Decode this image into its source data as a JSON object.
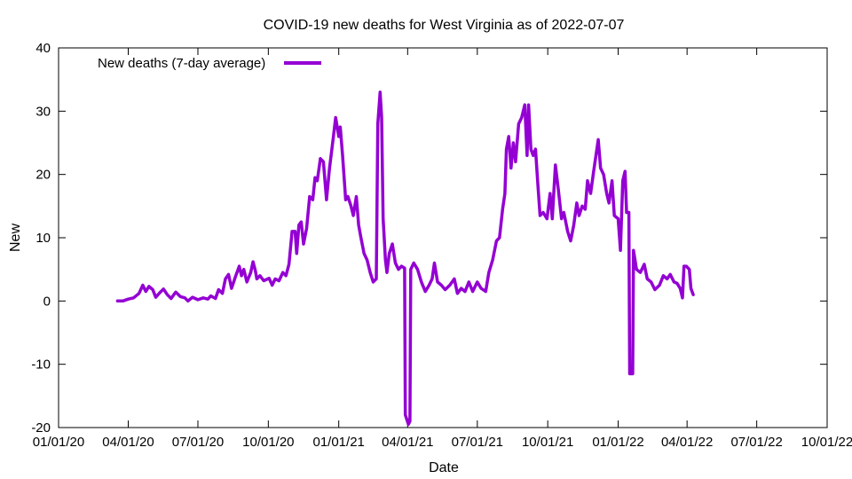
{
  "chart_data": {
    "type": "line",
    "title": "COVID-19 new deaths for West Virginia as of 2022-07-07",
    "xlabel": "Date",
    "ylabel": "New",
    "xlim": [
      "2020-01-01",
      "2022-10-01"
    ],
    "ylim": [
      -20,
      40
    ],
    "x_ticks": [
      "01/01/20",
      "04/01/20",
      "07/01/20",
      "10/01/20",
      "01/01/21",
      "04/01/21",
      "07/01/21",
      "10/01/21",
      "01/01/22",
      "04/01/22",
      "07/01/22",
      "10/01/22"
    ],
    "y_ticks": [
      "-20",
      "-10",
      "0",
      "10",
      "20",
      "30",
      "40"
    ],
    "grid": false,
    "legend_position": "top-left",
    "series_color": "#9400d3",
    "series": [
      {
        "name": "New deaths (7-day average)",
        "points": [
          [
            "2020-03-18",
            0
          ],
          [
            "2020-03-25",
            0
          ],
          [
            "2020-04-01",
            0.3
          ],
          [
            "2020-04-08",
            0.5
          ],
          [
            "2020-04-15",
            1.2
          ],
          [
            "2020-04-20",
            2.5
          ],
          [
            "2020-04-24",
            1.5
          ],
          [
            "2020-04-28",
            2.3
          ],
          [
            "2020-05-03",
            1.8
          ],
          [
            "2020-05-07",
            0.6
          ],
          [
            "2020-05-12",
            1.3
          ],
          [
            "2020-05-17",
            1.9
          ],
          [
            "2020-05-22",
            1.0
          ],
          [
            "2020-05-27",
            0.4
          ],
          [
            "2020-06-02",
            1.4
          ],
          [
            "2020-06-08",
            0.7
          ],
          [
            "2020-06-14",
            0.5
          ],
          [
            "2020-06-18",
            0.0
          ],
          [
            "2020-06-24",
            0.6
          ],
          [
            "2020-07-01",
            0.2
          ],
          [
            "2020-07-08",
            0.5
          ],
          [
            "2020-07-14",
            0.3
          ],
          [
            "2020-07-18",
            0.8
          ],
          [
            "2020-07-24",
            0.4
          ],
          [
            "2020-07-28",
            1.8
          ],
          [
            "2020-08-02",
            1.2
          ],
          [
            "2020-08-06",
            3.5
          ],
          [
            "2020-08-10",
            4.2
          ],
          [
            "2020-08-14",
            2.0
          ],
          [
            "2020-08-19",
            3.8
          ],
          [
            "2020-08-24",
            5.5
          ],
          [
            "2020-08-27",
            4.0
          ],
          [
            "2020-08-30",
            5.0
          ],
          [
            "2020-09-03",
            3.0
          ],
          [
            "2020-09-08",
            4.5
          ],
          [
            "2020-09-11",
            6.2
          ],
          [
            "2020-09-14",
            4.8
          ],
          [
            "2020-09-16",
            3.5
          ],
          [
            "2020-09-20",
            4.0
          ],
          [
            "2020-09-25",
            3.2
          ],
          [
            "2020-10-02",
            3.6
          ],
          [
            "2020-10-06",
            2.5
          ],
          [
            "2020-10-10",
            3.5
          ],
          [
            "2020-10-15",
            3.2
          ],
          [
            "2020-10-20",
            4.5
          ],
          [
            "2020-10-24",
            4.0
          ],
          [
            "2020-10-28",
            5.8
          ],
          [
            "2020-11-01",
            11.0
          ],
          [
            "2020-11-05",
            11.0
          ],
          [
            "2020-11-07",
            7.5
          ],
          [
            "2020-11-10",
            12.0
          ],
          [
            "2020-11-13",
            12.5
          ],
          [
            "2020-11-16",
            9.0
          ],
          [
            "2020-11-20",
            11.5
          ],
          [
            "2020-11-24",
            16.5
          ],
          [
            "2020-11-28",
            16.0
          ],
          [
            "2020-12-01",
            19.5
          ],
          [
            "2020-12-04",
            19.0
          ],
          [
            "2020-12-08",
            22.5
          ],
          [
            "2020-12-12",
            22.0
          ],
          [
            "2020-12-16",
            16.0
          ],
          [
            "2020-12-20",
            21.0
          ],
          [
            "2020-12-25",
            26.0
          ],
          [
            "2020-12-28",
            29.0
          ],
          [
            "2021-01-01",
            26.0
          ],
          [
            "2021-01-03",
            27.5
          ],
          [
            "2021-01-06",
            23.0
          ],
          [
            "2021-01-10",
            16.0
          ],
          [
            "2021-01-13",
            16.5
          ],
          [
            "2021-01-17",
            15.0
          ],
          [
            "2021-01-20",
            13.5
          ],
          [
            "2021-01-24",
            16.5
          ],
          [
            "2021-01-27",
            12.0
          ],
          [
            "2021-01-30",
            10.0
          ],
          [
            "2021-02-03",
            7.5
          ],
          [
            "2021-02-07",
            6.5
          ],
          [
            "2021-02-11",
            4.5
          ],
          [
            "2021-02-15",
            3.0
          ],
          [
            "2021-02-19",
            3.5
          ],
          [
            "2021-02-21",
            28.0
          ],
          [
            "2021-02-24",
            33.0
          ],
          [
            "2021-02-26",
            29.0
          ],
          [
            "2021-02-28",
            13.0
          ],
          [
            "2021-03-03",
            6.5
          ],
          [
            "2021-03-05",
            4.5
          ],
          [
            "2021-03-08",
            7.5
          ],
          [
            "2021-03-12",
            9.0
          ],
          [
            "2021-03-16",
            6.0
          ],
          [
            "2021-03-20",
            5.0
          ],
          [
            "2021-03-24",
            5.5
          ],
          [
            "2021-03-28",
            5.2
          ],
          [
            "2021-03-29",
            -18.0
          ],
          [
            "2021-04-02",
            -19.5
          ],
          [
            "2021-04-04",
            -19.0
          ],
          [
            "2021-04-05",
            5.0
          ],
          [
            "2021-04-09",
            6.0
          ],
          [
            "2021-04-14",
            5.0
          ],
          [
            "2021-04-19",
            3.0
          ],
          [
            "2021-04-24",
            1.5
          ],
          [
            "2021-04-29",
            2.5
          ],
          [
            "2021-05-03",
            3.5
          ],
          [
            "2021-05-06",
            6.0
          ],
          [
            "2021-05-10",
            3.0
          ],
          [
            "2021-05-15",
            2.5
          ],
          [
            "2021-05-20",
            1.8
          ],
          [
            "2021-05-26",
            2.5
          ],
          [
            "2021-06-01",
            3.5
          ],
          [
            "2021-06-05",
            1.2
          ],
          [
            "2021-06-10",
            2.0
          ],
          [
            "2021-06-15",
            1.5
          ],
          [
            "2021-06-20",
            3.0
          ],
          [
            "2021-06-25",
            1.5
          ],
          [
            "2021-07-01",
            3.0
          ],
          [
            "2021-07-06",
            2.0
          ],
          [
            "2021-07-12",
            1.5
          ],
          [
            "2021-07-16",
            4.5
          ],
          [
            "2021-07-21",
            6.5
          ],
          [
            "2021-07-26",
            9.5
          ],
          [
            "2021-07-30",
            10.0
          ],
          [
            "2021-08-03",
            14.5
          ],
          [
            "2021-08-06",
            17.0
          ],
          [
            "2021-08-08",
            24.0
          ],
          [
            "2021-08-11",
            26.0
          ],
          [
            "2021-08-14",
            21.0
          ],
          [
            "2021-08-17",
            25.0
          ],
          [
            "2021-08-20",
            22.0
          ],
          [
            "2021-08-24",
            28.0
          ],
          [
            "2021-08-28",
            29.0
          ],
          [
            "2021-09-01",
            31.0
          ],
          [
            "2021-09-04",
            23.0
          ],
          [
            "2021-09-06",
            31.0
          ],
          [
            "2021-09-09",
            24.0
          ],
          [
            "2021-09-12",
            23.0
          ],
          [
            "2021-09-15",
            24.0
          ],
          [
            "2021-09-18",
            18.5
          ],
          [
            "2021-09-21",
            13.5
          ],
          [
            "2021-09-25",
            14.0
          ],
          [
            "2021-09-30",
            13.0
          ],
          [
            "2021-10-04",
            17.0
          ],
          [
            "2021-10-07",
            13.0
          ],
          [
            "2021-10-11",
            21.5
          ],
          [
            "2021-10-15",
            17.5
          ],
          [
            "2021-10-19",
            13.0
          ],
          [
            "2021-10-22",
            14.0
          ],
          [
            "2021-10-27",
            11.0
          ],
          [
            "2021-10-31",
            9.5
          ],
          [
            "2021-11-04",
            12.0
          ],
          [
            "2021-11-08",
            15.5
          ],
          [
            "2021-11-11",
            13.5
          ],
          [
            "2021-11-15",
            15.0
          ],
          [
            "2021-11-19",
            14.5
          ],
          [
            "2021-11-22",
            19.0
          ],
          [
            "2021-11-26",
            17.0
          ],
          [
            "2021-11-30",
            20.5
          ],
          [
            "2021-12-03",
            23.0
          ],
          [
            "2021-12-06",
            25.5
          ],
          [
            "2021-12-09",
            21.0
          ],
          [
            "2021-12-13",
            20.0
          ],
          [
            "2021-12-17",
            17.0
          ],
          [
            "2021-12-20",
            15.5
          ],
          [
            "2021-12-24",
            19.0
          ],
          [
            "2021-12-27",
            13.5
          ],
          [
            "2022-01-01",
            13.0
          ],
          [
            "2022-01-04",
            8.0
          ],
          [
            "2022-01-07",
            19.0
          ],
          [
            "2022-01-10",
            20.5
          ],
          [
            "2022-01-12",
            14.0
          ],
          [
            "2022-01-15",
            14.0
          ],
          [
            "2022-01-16",
            -11.5
          ],
          [
            "2022-01-20",
            -11.5
          ],
          [
            "2022-01-21",
            8.0
          ],
          [
            "2022-01-25",
            5.0
          ],
          [
            "2022-01-30",
            4.5
          ],
          [
            "2022-02-04",
            5.8
          ],
          [
            "2022-02-08",
            3.5
          ],
          [
            "2022-02-13",
            3.0
          ],
          [
            "2022-02-18",
            1.8
          ],
          [
            "2022-02-24",
            2.5
          ],
          [
            "2022-03-01",
            4.0
          ],
          [
            "2022-03-06",
            3.5
          ],
          [
            "2022-03-10",
            4.2
          ],
          [
            "2022-03-15",
            3.0
          ],
          [
            "2022-03-19",
            2.8
          ],
          [
            "2022-03-23",
            2.0
          ],
          [
            "2022-03-26",
            0.5
          ],
          [
            "2022-03-28",
            5.5
          ],
          [
            "2022-03-31",
            5.5
          ],
          [
            "2022-04-04",
            5.0
          ],
          [
            "2022-04-06",
            2.0
          ],
          [
            "2022-04-09",
            1.0
          ]
        ]
      }
    ]
  }
}
